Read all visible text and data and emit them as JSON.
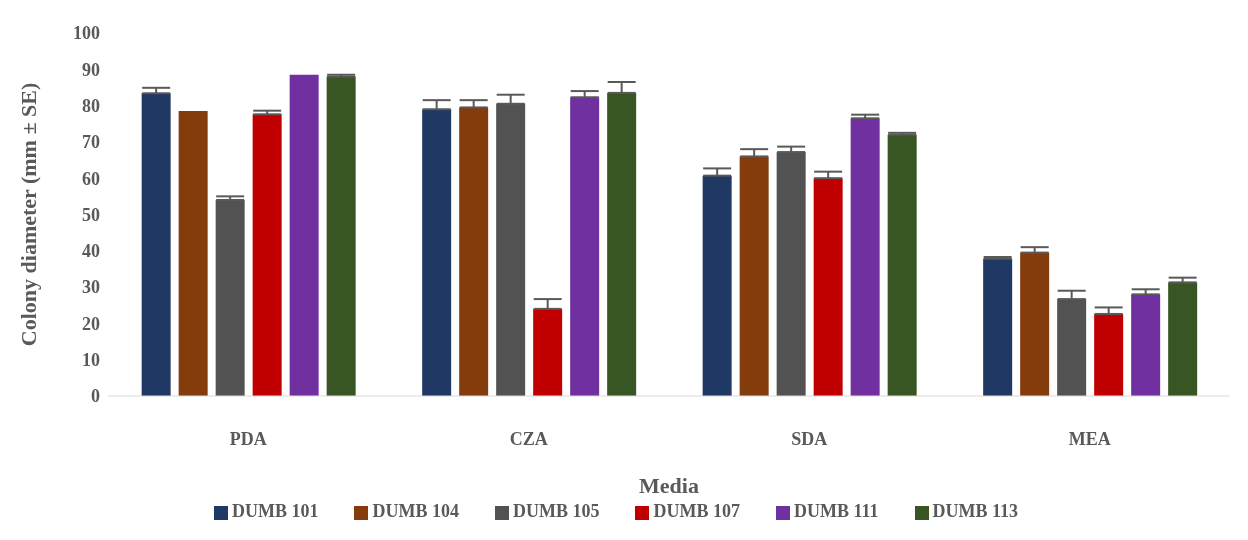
{
  "chart_data": {
    "type": "bar",
    "xlabel": "Media",
    "ylabel": "Colony diameter (mm ± SE)",
    "categories": [
      "PDA",
      "CZA",
      "SDA",
      "MEA"
    ],
    "series": [
      {
        "name": "DUMB 101",
        "color": "#1f3864",
        "values": [
          83.4,
          79,
          60.7,
          37.8
        ],
        "errors": [
          1.5,
          2.5,
          2,
          0.5
        ]
      },
      {
        "name": "DUMB 104",
        "color": "#843c0c",
        "values": [
          78.5,
          79.5,
          66,
          39.5
        ],
        "errors": [
          null,
          2,
          2,
          1.5
        ]
      },
      {
        "name": "DUMB 105",
        "color": "#525252",
        "values": [
          54,
          80.5,
          67.2,
          26.7
        ],
        "errors": [
          1,
          2.5,
          1.5,
          2.3
        ]
      },
      {
        "name": "DUMB 107",
        "color": "#c00000",
        "values": [
          77.6,
          24,
          60,
          22.6
        ],
        "errors": [
          1,
          2.7,
          1.8,
          1.8
        ]
      },
      {
        "name": "DUMB 111",
        "color": "#7030a0",
        "values": [
          88.5,
          82.3,
          76.5,
          28
        ],
        "errors": [
          null,
          1.7,
          1,
          1.4
        ]
      },
      {
        "name": "DUMB 113",
        "color": "#375623",
        "values": [
          88,
          83.5,
          72,
          31.3
        ],
        "errors": [
          0.5,
          3,
          0.5,
          1.3
        ]
      }
    ],
    "ylim": [
      0,
      100
    ],
    "yticks": [
      0,
      10,
      20,
      30,
      40,
      50,
      60,
      70,
      80,
      90,
      100
    ],
    "grid": false,
    "legend": "bottom"
  }
}
